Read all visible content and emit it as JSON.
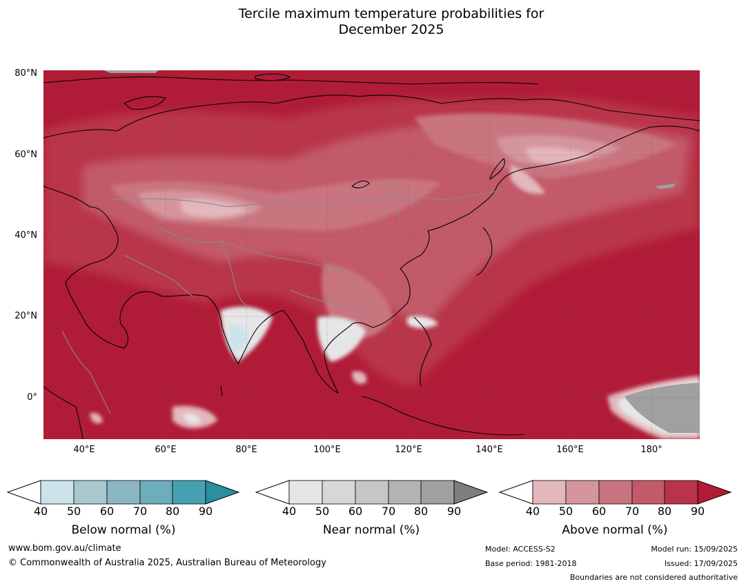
{
  "title_line1": "Tercile maximum temperature probabilities for",
  "title_line2": "December 2025",
  "map": {
    "lat_labels": [
      "80°N",
      "60°N",
      "40°N",
      "20°N",
      "0°"
    ],
    "lon_labels": [
      "40°E",
      "60°E",
      "80°E",
      "100°E",
      "120°E",
      "140°E",
      "160°E",
      "180°"
    ],
    "lat_range": [
      -10,
      81
    ],
    "lon_range": [
      30,
      192
    ]
  },
  "colorbars": [
    {
      "id": "below",
      "label": "Below normal (%)",
      "ticks": [
        "40",
        "50",
        "60",
        "70",
        "80",
        "90"
      ],
      "colors": [
        "#cde3ea",
        "#a8c8ce",
        "#8ab6c1",
        "#6eadbb",
        "#48a1b2",
        "#2b8ea1"
      ]
    },
    {
      "id": "near",
      "label": "Near normal (%)",
      "ticks": [
        "40",
        "50",
        "60",
        "70",
        "80",
        "90"
      ],
      "colors": [
        "#e6e6e6",
        "#d7d7d7",
        "#c6c6c6",
        "#b3b3b3",
        "#a0a0a0",
        "#7e7e7e"
      ]
    },
    {
      "id": "above",
      "label": "Above normal (%)",
      "ticks": [
        "40",
        "50",
        "60",
        "70",
        "80",
        "90"
      ],
      "colors": [
        "#e4b7bd",
        "#d5959c",
        "#c97580",
        "#c25a69",
        "#b9344a",
        "#b01c37"
      ]
    }
  ],
  "footer": {
    "url": "www.bom.gov.au/climate",
    "copyright": "© Commonwealth of Australia 2025, Australian Bureau of Meteorology",
    "model": "Model: ACCESS-S2",
    "base_period": "Base period: 1981-2018",
    "model_run": "Model run: 15/09/2025",
    "issued": "Issued: 17/09/2025",
    "disclaimer": "Boundaries are not considered authoritative"
  }
}
